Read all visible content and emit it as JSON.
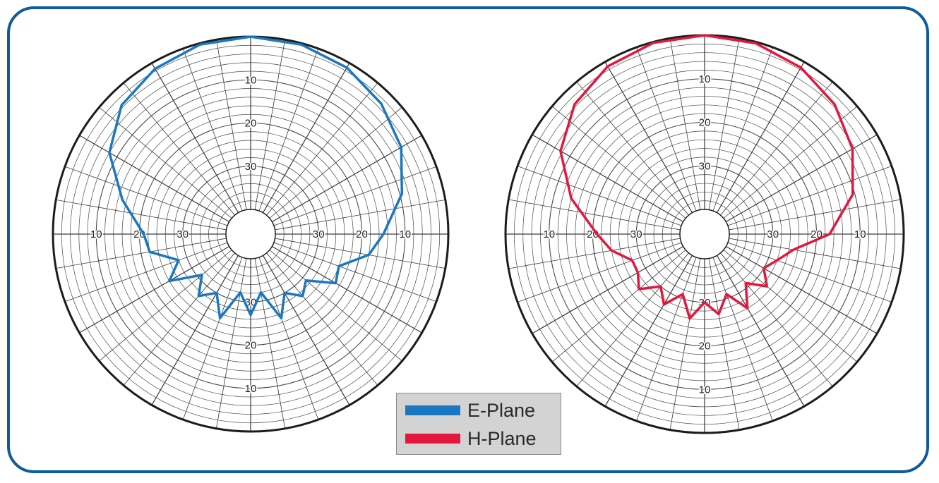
{
  "chart_data": [
    {
      "type": "polar-line",
      "name": "E-Plane",
      "color": "#1a78c2",
      "radial_range_db": [
        -40,
        0
      ],
      "radial_ticks": [
        "10",
        "20",
        "30"
      ],
      "angles_deg": [
        0,
        15,
        30,
        45,
        60,
        75,
        90,
        100,
        110,
        120,
        130,
        140,
        150,
        160,
        170,
        180,
        190,
        200,
        210,
        220,
        230,
        240,
        250,
        260,
        270,
        285,
        300,
        315,
        330,
        345
      ],
      "gain_db": [
        0,
        -0.3,
        -1.2,
        -3,
        -5.5,
        -9.5,
        -15,
        -18,
        -24,
        -23,
        -29,
        -27,
        -30,
        -25,
        -32,
        -27,
        -32,
        -25,
        -30,
        -27,
        -31,
        -24,
        -28,
        -22,
        -21,
        -15,
        -8,
        -3.5,
        -1.5,
        -0.3
      ]
    },
    {
      "type": "polar-line",
      "name": "H-Plane",
      "color": "#e3173e",
      "radial_range_db": [
        -40,
        0
      ],
      "radial_ticks": [
        "10",
        "20",
        "30"
      ],
      "angles_deg": [
        0,
        15,
        30,
        45,
        60,
        75,
        90,
        100,
        110,
        120,
        130,
        140,
        150,
        160,
        170,
        180,
        190,
        200,
        210,
        220,
        230,
        240,
        250,
        260,
        270,
        285,
        300,
        315,
        330,
        345
      ],
      "gain_db": [
        0,
        -0.3,
        -1.5,
        -3.5,
        -6.5,
        -10.5,
        -17,
        -25,
        -28,
        -30,
        -27,
        -31,
        -26,
        -31,
        -27,
        -30,
        -26,
        -31,
        -27,
        -30,
        -26,
        -28,
        -28,
        -24,
        -21,
        -14,
        -7.5,
        -3.5,
        -1.2,
        -0.2
      ]
    }
  ],
  "legend": {
    "items": [
      {
        "label": "E-Plane",
        "color": "#1a78c2"
      },
      {
        "label": "H-Plane",
        "color": "#e3173e"
      }
    ]
  }
}
